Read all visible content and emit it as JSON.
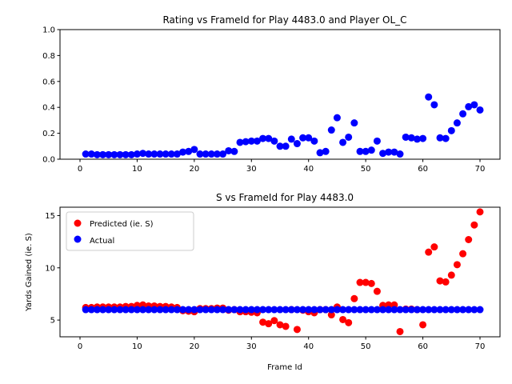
{
  "chart_data": [
    {
      "type": "scatter",
      "title": "Rating vs FrameId for Play 4483.0 and Player OL_C",
      "xlabel": "",
      "ylabel": "",
      "xlim": [
        -3.5,
        73.5
      ],
      "ylim": [
        0.0,
        1.0
      ],
      "xticks": [
        0,
        10,
        20,
        30,
        40,
        50,
        60,
        70
      ],
      "xtick_labels": [
        "0",
        "10",
        "20",
        "30",
        "40",
        "50",
        "60",
        "70"
      ],
      "yticks": [
        0.0,
        0.2,
        0.4,
        0.6,
        0.8,
        1.0
      ],
      "ytick_labels": [
        "0.0",
        "0.2",
        "0.4",
        "0.6",
        "0.8",
        "1.0"
      ],
      "grid": false,
      "series": [
        {
          "color": "#0000ff",
          "x": [
            1,
            2,
            3,
            4,
            5,
            6,
            7,
            8,
            9,
            10,
            11,
            12,
            13,
            14,
            15,
            16,
            17,
            18,
            19,
            20,
            21,
            22,
            23,
            24,
            25,
            26,
            27,
            28,
            29,
            30,
            31,
            32,
            33,
            34,
            35,
            36,
            37,
            38,
            39,
            40,
            41,
            42,
            43,
            44,
            45,
            46,
            47,
            48,
            49,
            50,
            51,
            52,
            53,
            54,
            55,
            56,
            57,
            58,
            59,
            60,
            61,
            62,
            63,
            64,
            65,
            66,
            67,
            68,
            69,
            70
          ],
          "y": [
            0.04,
            0.04,
            0.035,
            0.035,
            0.035,
            0.035,
            0.035,
            0.035,
            0.035,
            0.04,
            0.045,
            0.04,
            0.04,
            0.04,
            0.04,
            0.04,
            0.04,
            0.055,
            0.06,
            0.075,
            0.04,
            0.04,
            0.04,
            0.04,
            0.04,
            0.065,
            0.06,
            0.13,
            0.135,
            0.14,
            0.14,
            0.16,
            0.16,
            0.14,
            0.1,
            0.1,
            0.155,
            0.12,
            0.165,
            0.165,
            0.14,
            0.05,
            0.06,
            0.225,
            0.32,
            0.13,
            0.17,
            0.28,
            0.06,
            0.06,
            0.07,
            0.14,
            0.045,
            0.055,
            0.055,
            0.04,
            0.17,
            0.165,
            0.155,
            0.16,
            0.48,
            0.42,
            0.165,
            0.16,
            0.22,
            0.28,
            0.35,
            0.405,
            0.42,
            0.38
          ]
        }
      ]
    },
    {
      "type": "scatter",
      "title": "S vs FrameId for Play 4483.0",
      "xlabel": "Frame Id",
      "ylabel": "Yards Gained (ie. S)",
      "xlim": [
        -3.5,
        73.5
      ],
      "ylim": [
        3.4,
        15.8
      ],
      "xticks": [
        0,
        10,
        20,
        30,
        40,
        50,
        60,
        70
      ],
      "xtick_labels": [
        "0",
        "10",
        "20",
        "30",
        "40",
        "50",
        "60",
        "70"
      ],
      "yticks": [
        5,
        10,
        15
      ],
      "ytick_labels": [
        "5",
        "10",
        "15"
      ],
      "grid": false,
      "legend": {
        "position": "top-left"
      },
      "series": [
        {
          "name": "Predicted (ie. S)",
          "color": "#ff0000",
          "x": [
            1,
            2,
            3,
            4,
            5,
            6,
            7,
            8,
            9,
            10,
            11,
            12,
            13,
            14,
            15,
            16,
            17,
            18,
            19,
            20,
            21,
            22,
            23,
            24,
            25,
            26,
            27,
            28,
            29,
            30,
            31,
            32,
            33,
            34,
            35,
            36,
            37,
            38,
            39,
            40,
            41,
            42,
            43,
            44,
            45,
            46,
            47,
            48,
            49,
            50,
            51,
            52,
            53,
            54,
            55,
            56,
            57,
            58,
            59,
            60,
            61,
            62,
            63,
            64,
            65,
            66,
            67,
            68,
            69,
            70
          ],
          "y": [
            6.2,
            6.2,
            6.25,
            6.25,
            6.25,
            6.25,
            6.25,
            6.3,
            6.3,
            6.4,
            6.45,
            6.35,
            6.35,
            6.3,
            6.3,
            6.25,
            6.2,
            5.9,
            5.85,
            5.8,
            6.1,
            6.1,
            6.1,
            6.15,
            6.15,
            5.95,
            6.0,
            5.8,
            5.8,
            5.75,
            5.7,
            4.8,
            4.65,
            4.95,
            4.55,
            4.4,
            6.0,
            4.1,
            5.95,
            5.8,
            5.7,
            6.0,
            6.0,
            5.5,
            6.25,
            5.05,
            4.75,
            7.05,
            8.6,
            8.6,
            8.5,
            7.75,
            6.4,
            6.45,
            6.45,
            3.9,
            6.05,
            6.05,
            6.0,
            4.55,
            11.5,
            12.0,
            8.75,
            8.65,
            9.3,
            10.3,
            11.35,
            12.7,
            14.1,
            15.35
          ]
        },
        {
          "name": "Actual",
          "color": "#0000ff",
          "x": [
            1,
            2,
            3,
            4,
            5,
            6,
            7,
            8,
            9,
            10,
            11,
            12,
            13,
            14,
            15,
            16,
            17,
            18,
            19,
            20,
            21,
            22,
            23,
            24,
            25,
            26,
            27,
            28,
            29,
            30,
            31,
            32,
            33,
            34,
            35,
            36,
            37,
            38,
            39,
            40,
            41,
            42,
            43,
            44,
            45,
            46,
            47,
            48,
            49,
            50,
            51,
            52,
            53,
            54,
            55,
            56,
            57,
            58,
            59,
            60,
            61,
            62,
            63,
            64,
            65,
            66,
            67,
            68,
            69,
            70
          ],
          "y": [
            6.0,
            6.0,
            6.0,
            6.0,
            6.0,
            6.0,
            6.0,
            6.0,
            6.0,
            6.0,
            6.0,
            6.0,
            6.0,
            6.0,
            6.0,
            6.0,
            6.0,
            6.0,
            6.0,
            6.0,
            6.0,
            6.0,
            6.0,
            6.0,
            6.0,
            6.0,
            6.0,
            6.0,
            6.0,
            6.0,
            6.0,
            6.0,
            6.0,
            6.0,
            6.0,
            6.0,
            6.0,
            6.0,
            6.0,
            6.0,
            6.0,
            6.0,
            6.0,
            6.0,
            6.0,
            6.0,
            6.0,
            6.0,
            6.0,
            6.0,
            6.0,
            6.0,
            6.0,
            6.0,
            6.0,
            6.0,
            6.0,
            6.0,
            6.0,
            6.0,
            6.0,
            6.0,
            6.0,
            6.0,
            6.0,
            6.0,
            6.0,
            6.0,
            6.0,
            6.0
          ]
        }
      ]
    }
  ]
}
